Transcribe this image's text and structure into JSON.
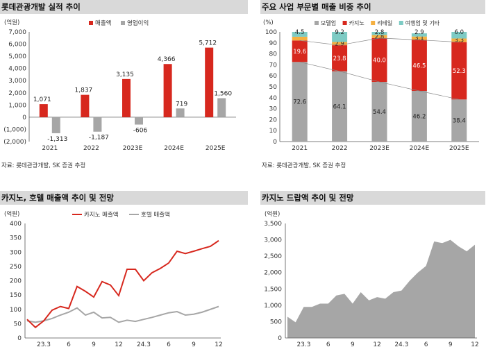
{
  "colors": {
    "red": "#d7281e",
    "gray": "#a6a6a6",
    "dgray": "#777777",
    "orange": "#f5b041",
    "teal": "#7dcbc4",
    "header": "#d9d9d9"
  },
  "chart_data": [
    {
      "type": "bar",
      "title": "롯데관광개발 실적 추이",
      "unit_label": "(억원)",
      "source": "자료: 롯데관광개발, SK 증권 추정",
      "categories": [
        "2021",
        "2022",
        "2023E",
        "2024E",
        "2025E"
      ],
      "series": [
        {
          "name": "매출액",
          "values": [
            1071,
            1837,
            3135,
            4366,
            5712
          ],
          "labels": [
            "1,071",
            "1,837",
            "3,135",
            "4,366",
            "5,712"
          ]
        },
        {
          "name": "영업이익",
          "values": [
            -1313,
            -1187,
            -606,
            719,
            1560
          ],
          "labels": [
            "-1,313",
            "-1,187",
            "-606",
            "719",
            "1,560"
          ]
        }
      ],
      "ylim": [
        -2000,
        7000
      ],
      "yticks": [
        "(2,000)",
        "(1,000)",
        "0",
        "1,000",
        "2,000",
        "3,000",
        "4,000",
        "5,000",
        "6,000",
        "7,000"
      ],
      "legend": "top"
    },
    {
      "type": "bar",
      "stacked": true,
      "title": "주요 사업 부문별 매출 비중 추이",
      "unit_label": "(%)",
      "source": "자료: 롯데관광개발, SK 증권 추정",
      "categories": [
        "2021",
        "2022",
        "2023E",
        "2024E",
        "2025E"
      ],
      "series": [
        {
          "name": "모델업",
          "values": [
            72.6,
            64.1,
            54.4,
            46.2,
            38.4
          ]
        },
        {
          "name": "카지노",
          "values": [
            19.6,
            23.8,
            40.0,
            46.5,
            52.3
          ]
        },
        {
          "name": "리테일",
          "values": [
            3.4,
            2.9,
            2.8,
            3.1,
            3.3
          ]
        },
        {
          "name": "여행업 및 기타",
          "values": [
            4.5,
            9.2,
            2.8,
            2.9,
            6.0
          ]
        }
      ],
      "value_labels": [
        [
          "72.6",
          "19.6",
          "",
          "4.5"
        ],
        [
          "64.1",
          "23.8",
          "2.9",
          "9.2"
        ],
        [
          "54.4",
          "40.0",
          "2.8",
          "2.8"
        ],
        [
          "46.2",
          "46.5",
          "3.1",
          "2.9"
        ],
        [
          "38.4",
          "52.3",
          "3.3",
          "6.0"
        ]
      ],
      "ylim": [
        0,
        100
      ],
      "yticks": [
        "0",
        "10",
        "20",
        "30",
        "40",
        "50",
        "60",
        "70",
        "80",
        "90",
        "100"
      ],
      "legend": "top"
    },
    {
      "type": "line",
      "title": "카지노, 호텔 매출액 추이 및 전망",
      "unit_label": "(억원)",
      "x_ticks": [
        "23.3",
        "6",
        "9",
        "12",
        "24.3",
        "6",
        "9",
        "12"
      ],
      "x_tick_month_index": [
        2,
        5,
        8,
        11,
        14,
        17,
        20,
        23
      ],
      "series": [
        {
          "name": "카지노 매출액",
          "values": [
            65,
            37,
            60,
            97,
            110,
            103,
            180,
            163,
            143,
            197,
            185,
            148,
            240,
            240,
            200,
            228,
            243,
            262,
            303,
            295,
            303,
            312,
            320,
            340
          ]
        },
        {
          "name": "호텔 매출액",
          "values": [
            60,
            55,
            60,
            68,
            80,
            90,
            105,
            80,
            90,
            70,
            72,
            55,
            62,
            58,
            65,
            72,
            80,
            88,
            92,
            80,
            83,
            90,
            100,
            110
          ]
        }
      ],
      "ylim": [
        0,
        400
      ],
      "yticks": [
        "0",
        "50",
        "100",
        "150",
        "200",
        "250",
        "300",
        "350",
        "400"
      ],
      "legend": "top"
    },
    {
      "type": "area",
      "title": "카지노 드랍액 추이 및 전망",
      "unit_label": "(억원)",
      "x_ticks": [
        "23.3",
        "6",
        "9",
        "12",
        "24.3",
        "6",
        "9",
        "12"
      ],
      "x_tick_month_index": [
        2,
        5,
        8,
        11,
        14,
        17,
        20,
        23
      ],
      "series": [
        {
          "name": "",
          "values": [
            650,
            480,
            950,
            950,
            1050,
            1050,
            1300,
            1350,
            1050,
            1400,
            1150,
            1250,
            1200,
            1400,
            1450,
            1750,
            2000,
            2200,
            2950,
            2900,
            3000,
            2800,
            2650,
            2850
          ]
        }
      ],
      "ylim": [
        0,
        3500
      ],
      "yticks": [
        "0",
        "500",
        "1,000",
        "1,500",
        "2,000",
        "2,500",
        "3,000",
        "3,500"
      ]
    }
  ]
}
